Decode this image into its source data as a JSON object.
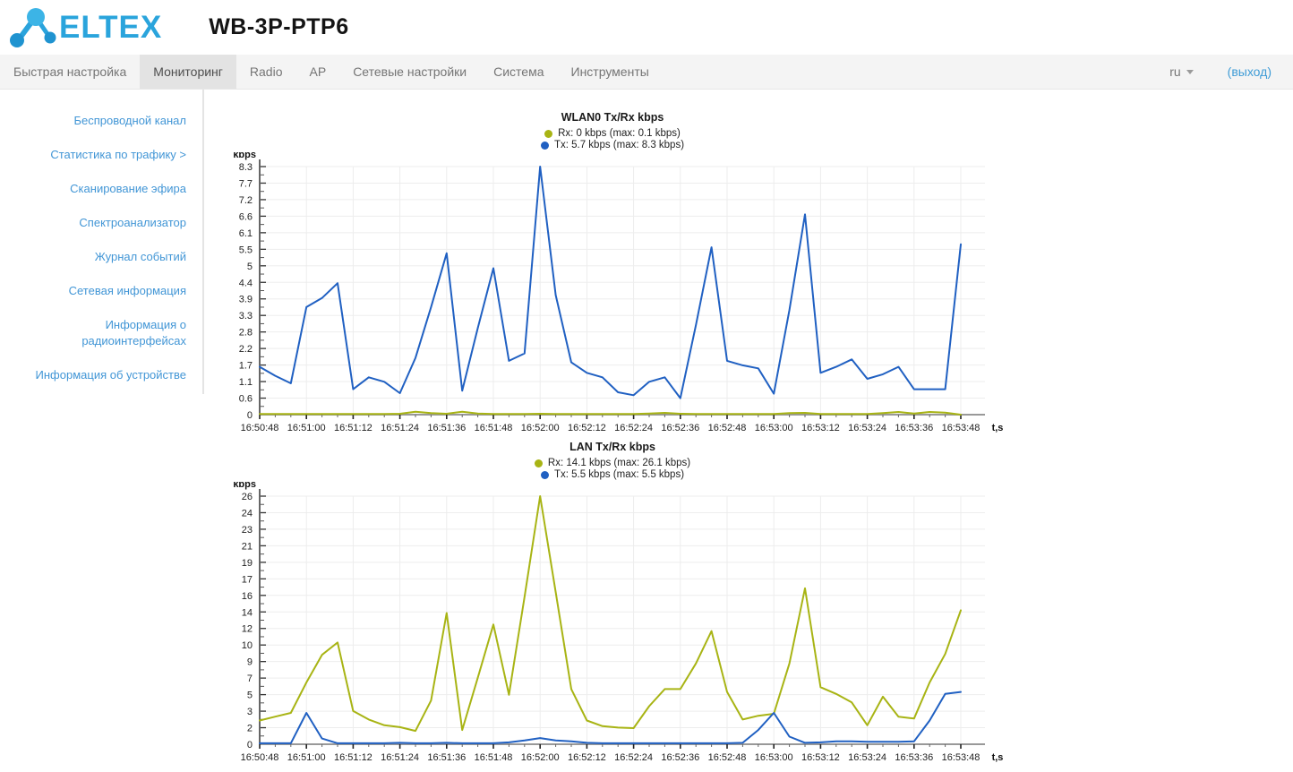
{
  "header": {
    "logo_text": "ELTEX",
    "device_title": "WB-3P-PTP6"
  },
  "navbar": {
    "tabs": [
      {
        "id": "quick-setup",
        "label": "Быстрая настройка",
        "active": false
      },
      {
        "id": "monitoring",
        "label": "Мониторинг",
        "active": true
      },
      {
        "id": "radio",
        "label": "Radio",
        "active": false
      },
      {
        "id": "ap",
        "label": "AP",
        "active": false
      },
      {
        "id": "network-settings",
        "label": "Сетевые настройки",
        "active": false
      },
      {
        "id": "system",
        "label": "Система",
        "active": false
      },
      {
        "id": "tools",
        "label": "Инструменты",
        "active": false
      }
    ],
    "language": {
      "label": "ru"
    },
    "logout_label": "(выход)"
  },
  "sidebar": {
    "items": [
      {
        "id": "wireless-channel",
        "label": "Беспроводной канал",
        "active": false
      },
      {
        "id": "traffic-statistics",
        "label": "Статистика по трафику >",
        "active": true
      },
      {
        "id": "air-scan",
        "label": "Сканирование эфира",
        "active": false
      },
      {
        "id": "spectrum-analyzer",
        "label": "Спектроанализатор",
        "active": false
      },
      {
        "id": "event-log",
        "label": "Журнал событий",
        "active": false
      },
      {
        "id": "network-info",
        "label": "Сетевая информация",
        "active": false
      },
      {
        "id": "radio-interfaces-info",
        "label": "Информация о радиоинтерфейсах",
        "active": false
      },
      {
        "id": "device-info",
        "label": "Информация об устройстве",
        "active": false
      }
    ]
  },
  "colors": {
    "rx_line": "#a8b414",
    "tx_line": "#2060c2",
    "link_blue": "#4296d6",
    "logo_blue": "#2aa4dc",
    "grid": "#ededed",
    "x_axis": "#999999",
    "y_axis": "#333333"
  },
  "chart_data": [
    {
      "id": "wlan0-traffic",
      "type": "line",
      "title": "WLAN0 Tx/Rx kbps",
      "ylabel": "kbps",
      "xlabel": "t,s",
      "ylim": [
        0,
        8.3
      ],
      "grid": true,
      "legend_position": "top-center",
      "sample_interval_s": 4,
      "x_tick_labels": [
        "16:50:48",
        "16:51:00",
        "16:51:12",
        "16:51:24",
        "16:51:36",
        "16:51:48",
        "16:52:00",
        "16:52:12",
        "16:52:24",
        "16:52:36",
        "16:52:48",
        "16:53:00",
        "16:53:12",
        "16:53:24",
        "16:53:36",
        "16:53:48"
      ],
      "y_tick_labels": [
        "8.3",
        "7.7",
        "7.2",
        "6.6",
        "6.1",
        "5.5",
        "5",
        "4.4",
        "3.9",
        "3.3",
        "2.8",
        "2.2",
        "1.7",
        "1.1",
        "0.6",
        "0"
      ],
      "legend": [
        {
          "series": "Rx",
          "text": "Rx: 0 kbps (max: 0.1 kbps)",
          "color": "#a8b414"
        },
        {
          "series": "Tx",
          "text": "Tx: 5.7 kbps (max: 8.3 kbps)",
          "color": "#2060c2"
        }
      ],
      "series": [
        {
          "name": "Rx",
          "color": "#a8b414",
          "values": [
            0.02,
            0.02,
            0.02,
            0.02,
            0.02,
            0.02,
            0.02,
            0.02,
            0.02,
            0.03,
            0.1,
            0.05,
            0.03,
            0.1,
            0.04,
            0.02,
            0.02,
            0.02,
            0.03,
            0.02,
            0.02,
            0.02,
            0.02,
            0.02,
            0.02,
            0.04,
            0.06,
            0.03,
            0.02,
            0.02,
            0.02,
            0.02,
            0.02,
            0.02,
            0.05,
            0.06,
            0.02,
            0.02,
            0.02,
            0.02,
            0.05,
            0.09,
            0.04,
            0.09,
            0.07,
            0.0
          ]
        },
        {
          "name": "Tx",
          "color": "#2060c2",
          "values": [
            1.6,
            1.3,
            1.05,
            3.6,
            3.9,
            4.4,
            0.85,
            1.25,
            1.1,
            0.72,
            1.9,
            3.6,
            5.4,
            0.8,
            2.9,
            4.9,
            1.8,
            2.05,
            8.3,
            4.0,
            1.75,
            1.4,
            1.25,
            0.75,
            0.65,
            1.1,
            1.25,
            0.55,
            3.0,
            5.6,
            1.8,
            1.65,
            1.55,
            0.7,
            3.5,
            6.7,
            1.4,
            1.6,
            1.85,
            1.2,
            1.35,
            1.6,
            0.85,
            0.85,
            0.85,
            5.7
          ]
        }
      ]
    },
    {
      "id": "lan-traffic",
      "type": "line",
      "title": "LAN Tx/Rx kbps",
      "ylabel": "kbps",
      "xlabel": "t,s",
      "ylim": [
        0,
        26.1
      ],
      "grid": true,
      "legend_position": "top-center",
      "sample_interval_s": 4,
      "x_tick_labels": [
        "16:50:48",
        "16:51:00",
        "16:51:12",
        "16:51:24",
        "16:51:36",
        "16:51:48",
        "16:52:00",
        "16:52:12",
        "16:52:24",
        "16:52:36",
        "16:52:48",
        "16:53:00",
        "16:53:12",
        "16:53:24",
        "16:53:36",
        "16:53:48"
      ],
      "y_tick_labels": [
        "26",
        "24",
        "23",
        "21",
        "19",
        "17",
        "16",
        "14",
        "12",
        "10",
        "9",
        "7",
        "5",
        "3",
        "2",
        "0"
      ],
      "legend": [
        {
          "series": "Rx",
          "text": "Rx: 14.1 kbps (max: 26.1 kbps)",
          "color": "#a8b414"
        },
        {
          "series": "Tx",
          "text": "Tx: 5.5 kbps (max: 5.5 kbps)",
          "color": "#2060c2"
        }
      ],
      "series": [
        {
          "name": "Rx",
          "color": "#a8b414",
          "values": [
            2.5,
            2.9,
            3.3,
            6.5,
            9.4,
            10.7,
            3.5,
            2.6,
            2.0,
            1.8,
            1.4,
            4.6,
            13.8,
            1.5,
            7.0,
            12.6,
            5.2,
            15.5,
            26.1,
            16.0,
            5.8,
            2.5,
            1.9,
            1.75,
            1.7,
            4.0,
            5.8,
            5.8,
            8.5,
            11.9,
            5.5,
            2.6,
            3.0,
            3.2,
            8.5,
            16.4,
            6.0,
            5.3,
            4.4,
            2.0,
            5.0,
            2.9,
            2.7,
            6.5,
            9.5,
            14.1
          ]
        },
        {
          "name": "Tx",
          "color": "#2060c2",
          "values": [
            0.1,
            0.1,
            0.1,
            3.3,
            0.6,
            0.1,
            0.1,
            0.1,
            0.1,
            0.15,
            0.1,
            0.1,
            0.15,
            0.1,
            0.1,
            0.1,
            0.2,
            0.4,
            0.65,
            0.4,
            0.3,
            0.15,
            0.1,
            0.1,
            0.1,
            0.1,
            0.1,
            0.1,
            0.1,
            0.1,
            0.1,
            0.15,
            1.5,
            3.3,
            0.8,
            0.15,
            0.2,
            0.3,
            0.3,
            0.25,
            0.25,
            0.25,
            0.3,
            2.5,
            5.3,
            5.5
          ]
        }
      ]
    }
  ]
}
